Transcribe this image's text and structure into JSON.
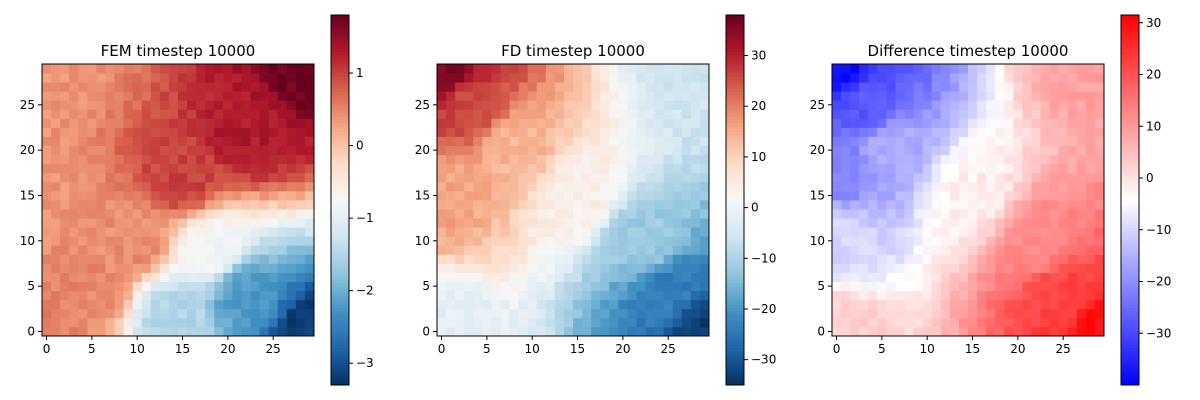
{
  "chart_data": [
    {
      "type": "heatmap",
      "title": "FEM timestep 10000",
      "colormap": "RdBu_r",
      "grid_size": [
        30,
        30
      ],
      "xlim": [
        -0.5,
        29.5
      ],
      "ylim": [
        -0.5,
        29.5
      ],
      "x_ticks": [
        0,
        5,
        10,
        15,
        20,
        25
      ],
      "y_ticks": [
        0,
        5,
        10,
        15,
        20,
        25
      ],
      "colorbar": {
        "vmin": -3.3,
        "vmax": 1.8,
        "ticks": [
          -3,
          -2,
          -1,
          0,
          1
        ]
      },
      "field_model": {
        "kind": "fem",
        "control_points": [
          {
            "x": 0,
            "y": 0,
            "v": 0.55
          },
          {
            "x": 5,
            "y": 5,
            "v": 0.5
          },
          {
            "x": 10,
            "y": 10,
            "v": 0.45
          },
          {
            "x": 0,
            "y": 29,
            "v": 0.4
          },
          {
            "x": 29,
            "y": 29,
            "v": 1.75
          },
          {
            "x": 22,
            "y": 22,
            "v": 1.3
          },
          {
            "x": 15,
            "y": 17,
            "v": 1.0
          },
          {
            "x": 29,
            "y": 0,
            "v": -3.2
          },
          {
            "x": 22,
            "y": 4,
            "v": -2.2
          },
          {
            "x": 18,
            "y": 9,
            "v": -0.8
          },
          {
            "x": 14,
            "y": 2,
            "v": -1.5
          }
        ]
      }
    },
    {
      "type": "heatmap",
      "title": "FD timestep 10000",
      "colormap": "RdBu_r",
      "grid_size": [
        30,
        30
      ],
      "xlim": [
        -0.5,
        29.5
      ],
      "ylim": [
        -0.5,
        29.5
      ],
      "x_ticks": [
        0,
        5,
        10,
        15,
        20,
        25
      ],
      "y_ticks": [
        0,
        5,
        10,
        15,
        20,
        25
      ],
      "colorbar": {
        "vmin": -35,
        "vmax": 38,
        "ticks": [
          -30,
          -20,
          -10,
          0,
          10,
          20,
          30
        ]
      },
      "field_model": {
        "kind": "fd",
        "control_points": [
          {
            "x": 0,
            "y": 29,
            "v": 36
          },
          {
            "x": 3,
            "y": 25,
            "v": 26
          },
          {
            "x": 0,
            "y": 15,
            "v": 16
          },
          {
            "x": 8,
            "y": 20,
            "v": 14
          },
          {
            "x": 15,
            "y": 15,
            "v": 4
          },
          {
            "x": 0,
            "y": 0,
            "v": -2
          },
          {
            "x": 29,
            "y": 29,
            "v": -6
          },
          {
            "x": 22,
            "y": 10,
            "v": -12
          },
          {
            "x": 29,
            "y": 0,
            "v": -34
          },
          {
            "x": 25,
            "y": 4,
            "v": -24
          }
        ]
      }
    },
    {
      "type": "heatmap",
      "title": "Difference timestep 10000",
      "colormap": "bwr",
      "grid_size": [
        30,
        30
      ],
      "xlim": [
        -0.5,
        29.5
      ],
      "ylim": [
        -0.5,
        29.5
      ],
      "x_ticks": [
        0,
        5,
        10,
        15,
        20,
        25
      ],
      "y_ticks": [
        0,
        5,
        10,
        15,
        20,
        25
      ],
      "colorbar": {
        "vmin": -40,
        "vmax": 31.5,
        "ticks": [
          -30,
          -20,
          -10,
          0,
          10,
          20,
          30
        ]
      },
      "field_model": {
        "kind": "diff",
        "control_points": [
          {
            "x": 0,
            "y": 29,
            "v": -38
          },
          {
            "x": 3,
            "y": 25,
            "v": -28
          },
          {
            "x": 0,
            "y": 18,
            "v": -22
          },
          {
            "x": 6,
            "y": 20,
            "v": -16
          },
          {
            "x": 0,
            "y": 10,
            "v": -10
          },
          {
            "x": 0,
            "y": 0,
            "v": 3
          },
          {
            "x": 15,
            "y": 15,
            "v": -2
          },
          {
            "x": 29,
            "y": 29,
            "v": 9
          },
          {
            "x": 22,
            "y": 10,
            "v": 12
          },
          {
            "x": 29,
            "y": 0,
            "v": 30
          },
          {
            "x": 25,
            "y": 4,
            "v": 22
          }
        ]
      }
    }
  ]
}
